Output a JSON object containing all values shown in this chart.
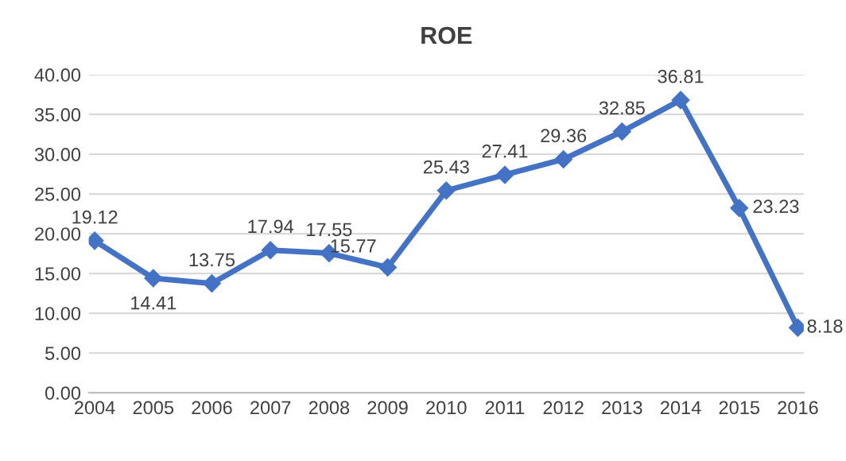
{
  "chart_data": {
    "type": "line",
    "title": "ROE",
    "categories": [
      "2004",
      "2005",
      "2006",
      "2007",
      "2008",
      "2009",
      "2010",
      "2011",
      "2012",
      "2013",
      "2014",
      "2015",
      "2016"
    ],
    "series": [
      {
        "color": "#4472c4",
        "values": [
          19.12,
          14.41,
          13.75,
          17.94,
          17.55,
          15.77,
          25.43,
          27.41,
          29.36,
          32.85,
          36.81,
          23.23,
          8.18
        ]
      }
    ],
    "ylim": [
      0,
      40
    ],
    "yticks": [
      {
        "value": 0,
        "label": "0.00"
      },
      {
        "value": 5,
        "label": "5.00"
      },
      {
        "value": 10,
        "label": "10.00"
      },
      {
        "value": 15,
        "label": "15.00"
      },
      {
        "value": 20,
        "label": "20.00"
      },
      {
        "value": 25,
        "label": "25.00"
      },
      {
        "value": 30,
        "label": "30.00"
      },
      {
        "value": 35,
        "label": "35.00"
      },
      {
        "value": 40,
        "label": "40.00"
      }
    ],
    "grid": "y",
    "marker": "diamond",
    "line_style": "solid",
    "data_labels": true
  }
}
